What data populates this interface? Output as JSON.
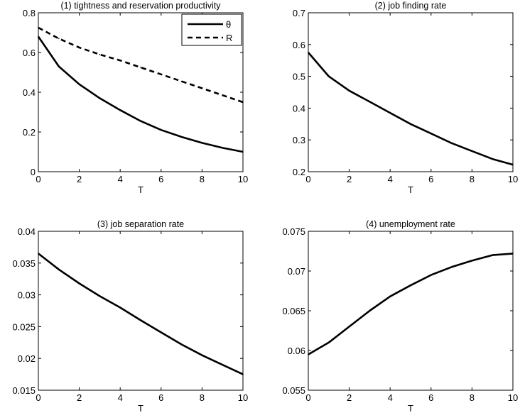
{
  "chart_data": [
    {
      "type": "line",
      "title": "(1) tightness and reservation productivity",
      "xlabel": "T",
      "ylabel": "",
      "xlim": [
        0,
        10
      ],
      "ylim": [
        0,
        0.8
      ],
      "xticks": [
        "0",
        "2",
        "4",
        "6",
        "8",
        "10"
      ],
      "yticks": [
        "0",
        "0.2",
        "0.4",
        "0.6",
        "0.8"
      ],
      "legend": "top-right",
      "x": [
        0,
        1,
        2,
        3,
        4,
        5,
        6,
        7,
        8,
        9,
        10
      ],
      "series": [
        {
          "name": "θ",
          "style": "solid",
          "values": [
            0.68,
            0.53,
            0.44,
            0.37,
            0.31,
            0.255,
            0.21,
            0.175,
            0.145,
            0.12,
            0.1
          ]
        },
        {
          "name": "R",
          "style": "dashed",
          "values": [
            0.725,
            0.67,
            0.625,
            0.59,
            0.56,
            0.525,
            0.49,
            0.455,
            0.42,
            0.385,
            0.35
          ]
        }
      ]
    },
    {
      "type": "line",
      "title": "(2) job finding rate",
      "xlabel": "T",
      "ylabel": "",
      "xlim": [
        0,
        10
      ],
      "ylim": [
        0.2,
        0.7
      ],
      "xticks": [
        "0",
        "2",
        "4",
        "6",
        "8",
        "10"
      ],
      "yticks": [
        "0.2",
        "0.3",
        "0.4",
        "0.5",
        "0.6",
        "0.7"
      ],
      "x": [
        0,
        1,
        2,
        3,
        4,
        5,
        6,
        7,
        8,
        9,
        10
      ],
      "series": [
        {
          "style": "solid",
          "values": [
            0.575,
            0.5,
            0.455,
            0.42,
            0.385,
            0.35,
            0.32,
            0.29,
            0.265,
            0.24,
            0.222
          ]
        }
      ]
    },
    {
      "type": "line",
      "title": "(3) job separation rate",
      "xlabel": "T",
      "ylabel": "",
      "xlim": [
        0,
        10
      ],
      "ylim": [
        0.015,
        0.04
      ],
      "xticks": [
        "0",
        "2",
        "4",
        "6",
        "8",
        "10"
      ],
      "yticks": [
        "0.015",
        "0.02",
        "0.025",
        "0.03",
        "0.035",
        "0.04"
      ],
      "x": [
        0,
        1,
        2,
        3,
        4,
        5,
        6,
        7,
        8,
        9,
        10
      ],
      "series": [
        {
          "style": "solid",
          "values": [
            0.0365,
            0.034,
            0.0318,
            0.0298,
            0.028,
            0.026,
            0.0241,
            0.0222,
            0.0205,
            0.019,
            0.0175
          ]
        }
      ]
    },
    {
      "type": "line",
      "title": "(4) unemployment rate",
      "xlabel": "T",
      "ylabel": "",
      "xlim": [
        0,
        10
      ],
      "ylim": [
        0.055,
        0.075
      ],
      "xticks": [
        "0",
        "2",
        "4",
        "6",
        "8",
        "10"
      ],
      "yticks": [
        "0.055",
        "0.06",
        "0.065",
        "0.07",
        "0.075"
      ],
      "x": [
        0,
        1,
        2,
        3,
        4,
        5,
        6,
        7,
        8,
        9,
        10
      ],
      "series": [
        {
          "style": "solid",
          "values": [
            0.0595,
            0.061,
            0.063,
            0.065,
            0.0668,
            0.0682,
            0.0695,
            0.0705,
            0.0713,
            0.072,
            0.0722
          ]
        }
      ]
    }
  ]
}
